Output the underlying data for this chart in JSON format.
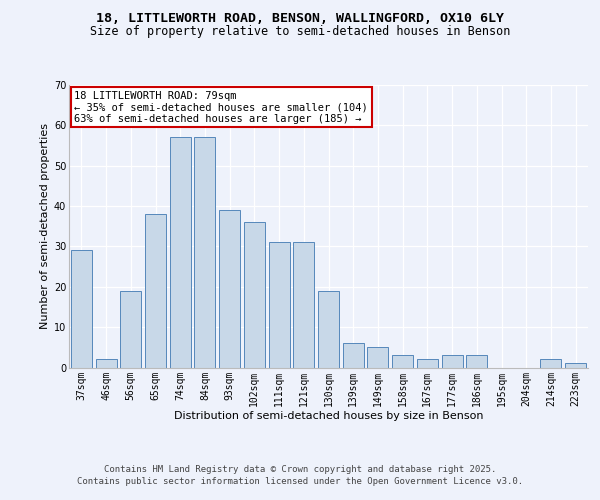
{
  "title1": "18, LITTLEWORTH ROAD, BENSON, WALLINGFORD, OX10 6LY",
  "title2": "Size of property relative to semi-detached houses in Benson",
  "xlabel": "Distribution of semi-detached houses by size in Benson",
  "ylabel": "Number of semi-detached properties",
  "categories": [
    "37sqm",
    "46sqm",
    "56sqm",
    "65sqm",
    "74sqm",
    "84sqm",
    "93sqm",
    "102sqm",
    "111sqm",
    "121sqm",
    "130sqm",
    "139sqm",
    "149sqm",
    "158sqm",
    "167sqm",
    "177sqm",
    "186sqm",
    "195sqm",
    "204sqm",
    "214sqm",
    "223sqm"
  ],
  "values": [
    29,
    2,
    19,
    38,
    57,
    57,
    39,
    36,
    31,
    31,
    19,
    6,
    5,
    3,
    2,
    3,
    3,
    0,
    0,
    2,
    1
  ],
  "bar_color": "#c8d8e8",
  "bar_edge_color": "#5588bb",
  "annotation_text": "18 LITTLEWORTH ROAD: 79sqm\n← 35% of semi-detached houses are smaller (104)\n63% of semi-detached houses are larger (185) →",
  "annotation_box_color": "#ffffff",
  "annotation_border_color": "#cc0000",
  "ylim": [
    0,
    70
  ],
  "yticks": [
    0,
    10,
    20,
    30,
    40,
    50,
    60,
    70
  ],
  "background_color": "#eef2fb",
  "footer1": "Contains HM Land Registry data © Crown copyright and database right 2025.",
  "footer2": "Contains public sector information licensed under the Open Government Licence v3.0.",
  "title_fontsize": 9.5,
  "subtitle_fontsize": 8.5,
  "axis_label_fontsize": 8,
  "tick_fontsize": 7,
  "annotation_fontsize": 7.5,
  "footer_fontsize": 6.5
}
